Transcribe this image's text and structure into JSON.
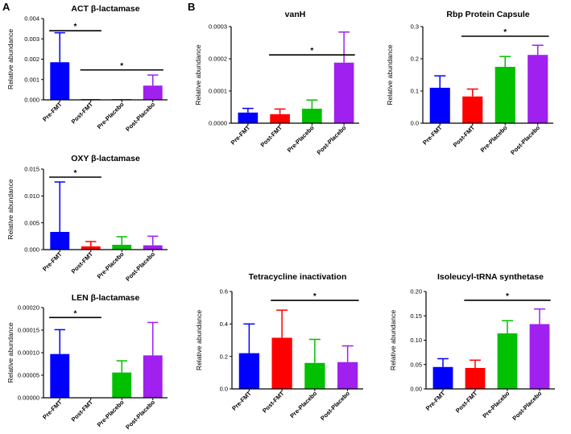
{
  "panel_labels": [
    "A",
    "B"
  ],
  "chart_data": [
    {
      "type": "bar",
      "title": "ACT β-lactamase",
      "ylabel": "Relative abundance",
      "categories": [
        "Pre-FMT",
        "Post-FMT",
        "Pre-Placebo",
        "Post-Placebo"
      ],
      "values": [
        0.00185,
        2e-05,
        2e-05,
        0.0007
      ],
      "errors": [
        0.00145,
        0,
        0,
        0.00052
      ],
      "ylim": [
        0,
        0.004
      ],
      "yticks": [
        0,
        0.001,
        0.002,
        0.003,
        0.004
      ],
      "ytick_labels": [
        "0.000",
        "0.001",
        "0.002",
        "0.003",
        "0.004"
      ],
      "significance": [
        {
          "from": 0,
          "to": 1,
          "level": 0.0034,
          "label": "*"
        },
        {
          "from": 1,
          "to": 3,
          "level": 0.00147,
          "label": "*"
        }
      ]
    },
    {
      "type": "bar",
      "title": "OXY β-lactamase",
      "ylabel": "Relative abundance",
      "categories": [
        "Pre-FMT",
        "Post-FMT",
        "Pre-Placebo",
        "Post-Placebo"
      ],
      "values": [
        0.0033,
        0.0006,
        0.0009,
        0.0008
      ],
      "errors": [
        0.0093,
        0.0009,
        0.0015,
        0.0017
      ],
      "ylim": [
        0,
        0.015
      ],
      "yticks": [
        0,
        0.005,
        0.01,
        0.015
      ],
      "ytick_labels": [
        "0.000",
        "0.005",
        "0.010",
        "0.015"
      ],
      "significance": [
        {
          "from": 0,
          "to": 1,
          "level": 0.0135,
          "label": "*"
        }
      ]
    },
    {
      "type": "bar",
      "title": "LEN β-lactamase",
      "ylabel": "Relative abundance",
      "categories": [
        "Pre-FMT",
        "Post-FMT",
        "Pre-Placebo",
        "Post-Placebo"
      ],
      "values": [
        9.7e-05,
        0,
        5.6e-05,
        9.4e-05
      ],
      "errors": [
        5.4e-05,
        0,
        2.6e-05,
        7.3e-05
      ],
      "ylim": [
        0,
        0.0002
      ],
      "yticks": [
        0,
        5e-05,
        0.0001,
        0.00015,
        0.0002
      ],
      "ytick_labels": [
        "0.00000",
        "0.00005",
        "0.00010",
        "0.00015",
        "0.00020"
      ],
      "significance": [
        {
          "from": 0,
          "to": 1,
          "level": 0.000178,
          "label": "*"
        }
      ]
    },
    {
      "type": "bar",
      "title": "vanH",
      "ylabel": "Relative abundance",
      "categories": [
        "Pre-FMT",
        "Post-FMT",
        "Pre-Placebo",
        "Post-Placebo"
      ],
      "values": [
        3.3e-05,
        2.8e-05,
        4.5e-05,
        0.000188
      ],
      "errors": [
        1.3e-05,
        1.6e-05,
        2.7e-05,
        9.5e-05
      ],
      "ylim": [
        0,
        0.0003
      ],
      "yticks": [
        0,
        0.0001,
        0.0002,
        0.0003
      ],
      "ytick_labels": [
        "0.0000",
        "0.0001",
        "0.0002",
        "0.0003"
      ],
      "significance": [
        {
          "from": 1,
          "to": 3,
          "level": 0.000212,
          "label": "*"
        }
      ]
    },
    {
      "type": "bar",
      "title": "Rbp Protein Capsule",
      "ylabel": "Relative abundance",
      "categories": [
        "Pre-FMT",
        "Post-FMT",
        "Pre-Placebo",
        "Post-Placebo"
      ],
      "values": [
        0.11,
        0.083,
        0.175,
        0.212
      ],
      "errors": [
        0.037,
        0.023,
        0.032,
        0.03
      ],
      "ylim": [
        0,
        0.3
      ],
      "yticks": [
        0,
        0.1,
        0.2,
        0.3
      ],
      "ytick_labels": [
        "0.0",
        "0.1",
        "0.2",
        "0.3"
      ],
      "significance": [
        {
          "from": 1,
          "to": 3,
          "level": 0.27,
          "label": "*"
        }
      ]
    },
    {
      "type": "bar",
      "title": "Tetracycline inactivation",
      "ylabel": "Relative abundance",
      "categories": [
        "Pre-FMT",
        "Post-FMT",
        "Pre-Placebo",
        "Post-Placebo"
      ],
      "values": [
        0.22,
        0.315,
        0.16,
        0.165
      ],
      "errors": [
        0.18,
        0.17,
        0.145,
        0.1
      ],
      "ylim": [
        0,
        0.6
      ],
      "yticks": [
        0,
        0.2,
        0.4,
        0.6
      ],
      "ytick_labels": [
        "0.0",
        "0.2",
        "0.4",
        "0.6"
      ],
      "significance": [
        {
          "from": 1,
          "to": 3,
          "level": 0.545,
          "label": "*"
        }
      ]
    },
    {
      "type": "bar",
      "title": "Isoleucyl-tRNA synthetase",
      "ylabel": "Relative abundance",
      "categories": [
        "Pre-FMT",
        "Post-FMT",
        "Pre-Placebo",
        "Post-Placebo"
      ],
      "values": [
        0.045,
        0.043,
        0.114,
        0.133
      ],
      "errors": [
        0.017,
        0.016,
        0.026,
        0.031
      ],
      "ylim": [
        0,
        0.2
      ],
      "yticks": [
        0,
        0.05,
        0.1,
        0.15,
        0.2
      ],
      "ytick_labels": [
        "0.00",
        "0.05",
        "0.10",
        "0.15",
        "0.20"
      ],
      "significance": [
        {
          "from": 1,
          "to": 3,
          "level": 0.182,
          "label": "*"
        }
      ]
    }
  ],
  "colors": {
    "bars": [
      "#0000ff",
      "#ff0000",
      "#00c000",
      "#a020f0"
    ],
    "axis": "#000000"
  }
}
